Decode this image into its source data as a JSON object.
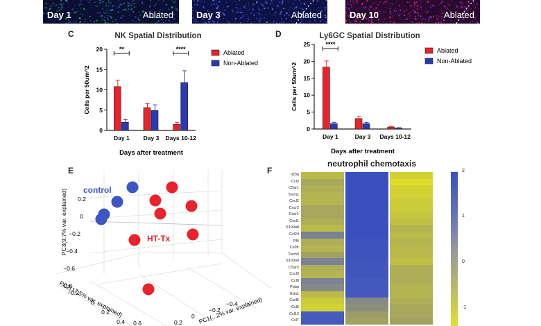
{
  "micrographs": [
    {
      "day_label": "Day 1",
      "status_label": "Ablated",
      "base": "#0a0f33",
      "dots": [
        "#2ea84a",
        "#3a55c8"
      ]
    },
    {
      "day_label": "Day 3",
      "status_label": "Ablated",
      "base": "#0d1245",
      "dots": [
        "#3b4fd6",
        "#5a6ae6"
      ]
    },
    {
      "day_label": "Day 10",
      "status_label": "Ablated",
      "base": "#2a0a2e",
      "dots": [
        "#d8286a",
        "#8a2bd0"
      ]
    }
  ],
  "panels": {
    "C": {
      "letter": "C"
    },
    "D": {
      "letter": "D"
    },
    "E": {
      "letter": "E",
      "group_control": "control",
      "group_treated": "HT-Tx"
    },
    "F": {
      "letter": "F"
    }
  },
  "colors": {
    "ablated": "#e8232b",
    "non_ablated": "#2a3ab6",
    "pca_control": "#3d56c2",
    "pca_treated": "#e8232b"
  },
  "chart_data": [
    {
      "type": "bar",
      "title": "NK Spatial Distribution",
      "xlabel": "Days after treatment",
      "ylabel": "Cells per 50um^2",
      "ylim": [
        0,
        20
      ],
      "yticks": [
        "0",
        "5",
        "10",
        "15",
        "20"
      ],
      "categories": [
        "Day 1",
        "Day 3",
        "Days 10-12"
      ],
      "series": [
        {
          "name": "Ablated",
          "values": [
            10.8,
            5.6,
            1.5
          ],
          "errors": [
            1.6,
            1.0,
            0.5
          ]
        },
        {
          "name": "Non-Ablated",
          "values": [
            2.0,
            4.9,
            11.8
          ],
          "errors": [
            0.7,
            1.4,
            2.9
          ]
        }
      ],
      "significance": [
        "**",
        "",
        "****"
      ],
      "legend": "right"
    },
    {
      "type": "bar",
      "title": "Ly6GC Spatial Distribution",
      "xlabel": "Days after treatment",
      "ylabel": "Cells per 50um^2",
      "ylim": [
        0,
        25
      ],
      "yticks": [
        "0",
        "5",
        "10",
        "15",
        "20",
        "25"
      ],
      "categories": [
        "Day 1",
        "Day 3",
        "Days 10-12"
      ],
      "series": [
        {
          "name": "Ablated",
          "values": [
            18.3,
            3.1,
            0.6
          ],
          "errors": [
            1.8,
            0.6,
            0.2
          ]
        },
        {
          "name": "Non-Ablated",
          "values": [
            1.6,
            1.6,
            0.3
          ],
          "errors": [
            0.4,
            0.4,
            0.1
          ]
        }
      ],
      "significance": [
        "****",
        "",
        ""
      ],
      "legend": "right"
    },
    {
      "type": "scatter",
      "ylabel": "PC3(9.7% var. explained)",
      "xlabel": "PC2(17.5% var. explained)",
      "zlabel": "PC1(...2% var. explained)",
      "yticks": [
        "0.2",
        "0",
        "−0.2",
        "−0.4",
        "−0.6",
        "−0.8"
      ],
      "xticks": [
        "−0.2",
        "0",
        "0.2",
        "0.4",
        "0.6"
      ],
      "zticks": [
        "−0.4",
        "−0.2",
        "0",
        "0.2"
      ],
      "groups": [
        {
          "name": "control",
          "count": 4
        },
        {
          "name": "HT-Tx",
          "count": 7
        }
      ]
    },
    {
      "type": "heatmap",
      "title": "neutrophil chemotaxis",
      "rows": [
        "Il23a",
        "Ccl3",
        "C5ar1",
        "Trem1",
        "Cxcl2",
        "Cxcr2",
        "Cxcr1",
        "Cxcl1",
        "S100a8",
        "Ccl24",
        "Pf4",
        "Csf3r",
        "Trem3",
        "S100a9",
        "C5ar2",
        "Cxcl3",
        "Ccl8",
        "Ppbp",
        "Edn1",
        "Cxcl5",
        "Ccl6",
        "Ccl12",
        "Ccl7"
      ],
      "columns": 3,
      "colorbar_ticks": [
        "2",
        "1",
        "0",
        "-1"
      ],
      "values": [
        [
          -0.6,
          2.0,
          -1.0
        ],
        [
          -0.3,
          2.0,
          -1.2
        ],
        [
          -0.4,
          2.0,
          -1.0
        ],
        [
          -0.5,
          2.0,
          -1.0
        ],
        [
          -0.5,
          2.0,
          -0.9
        ],
        [
          -0.3,
          2.0,
          -0.9
        ],
        [
          -0.3,
          2.0,
          -0.8
        ],
        [
          -0.4,
          2.0,
          -0.7
        ],
        [
          -0.6,
          2.0,
          -0.5
        ],
        [
          0.5,
          2.0,
          -0.6
        ],
        [
          -0.4,
          1.9,
          -0.5
        ],
        [
          -0.5,
          1.9,
          -0.6
        ],
        [
          -0.2,
          1.9,
          -0.6
        ],
        [
          0.5,
          1.8,
          -0.7
        ],
        [
          -0.4,
          1.8,
          -0.4
        ],
        [
          -0.5,
          1.8,
          -0.4
        ],
        [
          0.5,
          1.7,
          -0.4
        ],
        [
          0.3,
          1.7,
          -0.5
        ],
        [
          -0.6,
          1.7,
          -0.5
        ],
        [
          -0.9,
          0.3,
          -0.4
        ],
        [
          -1.0,
          0.2,
          -0.3
        ],
        [
          1.6,
          -0.1,
          -0.3
        ],
        [
          1.7,
          -0.2,
          -0.2
        ]
      ]
    }
  ]
}
